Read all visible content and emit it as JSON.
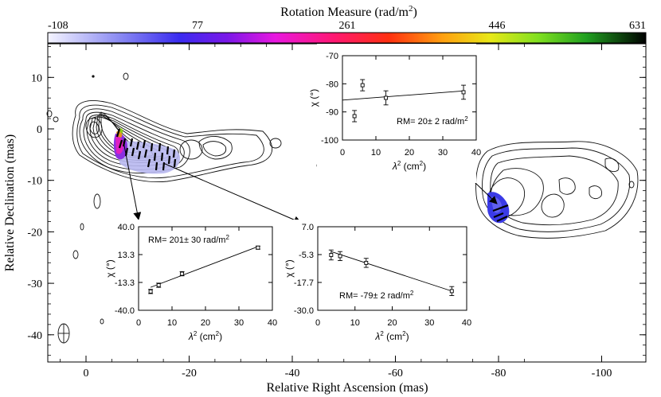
{
  "colorbar": {
    "title": "Rotation Measure (rad/m",
    "title_sup": "2",
    "title_end": ")",
    "ticks": [
      "-108",
      "77",
      "261",
      "446",
      "631"
    ]
  },
  "main_axes": {
    "xlabel": "Relative Right Ascension (mas)",
    "ylabel": "Relative Declination (mas)",
    "xticks": [
      "0",
      "-20",
      "-40",
      "-60",
      "-80",
      "-100"
    ],
    "yticks": [
      "10",
      "0",
      "-10",
      "-20",
      "-30",
      "-40"
    ]
  },
  "chart_data": [
    {
      "type": "scatter",
      "id": "inset-top",
      "ylabel": "χ (°)",
      "xlabel": "λ2 (cm2)",
      "annotation": "RM= 20± 2 rad/m2",
      "xlim": [
        0,
        40
      ],
      "ylim": [
        -100,
        -70
      ],
      "xticks": [
        "0",
        "10",
        "20",
        "30",
        "40"
      ],
      "yticks": [
        "-70",
        "-80",
        "-90",
        "-100"
      ],
      "x": [
        3.6,
        6.0,
        13.0,
        36.2
      ],
      "y": [
        -91.5,
        -80.5,
        -85.0,
        -83.0
      ],
      "err": [
        2.0,
        2.0,
        2.5,
        2.5
      ],
      "fit": [
        [
          0,
          -85.8
        ],
        [
          36.5,
          -82.5
        ]
      ]
    },
    {
      "type": "scatter",
      "id": "inset-left",
      "ylabel": "χ (°)",
      "xlabel": "λ2 (cm2)",
      "annotation": "RM= 201± 30 rad/m2",
      "xlim": [
        0,
        40
      ],
      "ylim": [
        -40,
        40
      ],
      "xticks": [
        "0",
        "10",
        "20",
        "30",
        "40"
      ],
      "yticks": [
        "40.0",
        "13.3",
        "-13.3",
        "-40.0"
      ],
      "x": [
        3.6,
        6.0,
        13.0,
        35.7
      ],
      "y": [
        -22.0,
        -16.0,
        -5.0,
        20.0
      ],
      "err": [
        2.0,
        2.0,
        2.0,
        1.5
      ],
      "fit": [
        [
          3.6,
          -18.0
        ],
        [
          35.7,
          21.0
        ]
      ]
    },
    {
      "type": "scatter",
      "id": "inset-right",
      "ylabel": "χ (°)",
      "xlabel": "λ2 (cm2)",
      "annotation": "RM= -79± 2 rad/m2",
      "xlim": [
        0,
        40
      ],
      "ylim": [
        -30,
        7
      ],
      "xticks": [
        "0",
        "10",
        "20",
        "30",
        "40"
      ],
      "yticks": [
        "7.0",
        "-5.3",
        "-17.7",
        "-30.0"
      ],
      "x": [
        3.6,
        6.0,
        13.0,
        36.0
      ],
      "y": [
        -5.5,
        -6.0,
        -9.0,
        -21.5
      ],
      "err": [
        2.2,
        2.0,
        2.0,
        2.0
      ],
      "fit": [
        [
          3.6,
          -4.0
        ],
        [
          36.0,
          -21.5
        ]
      ]
    }
  ],
  "colors": {
    "contour": "#111111",
    "rm_blue": "#5a5ae8",
    "rm_light": "#b8b8f0",
    "vector": "#000000"
  }
}
